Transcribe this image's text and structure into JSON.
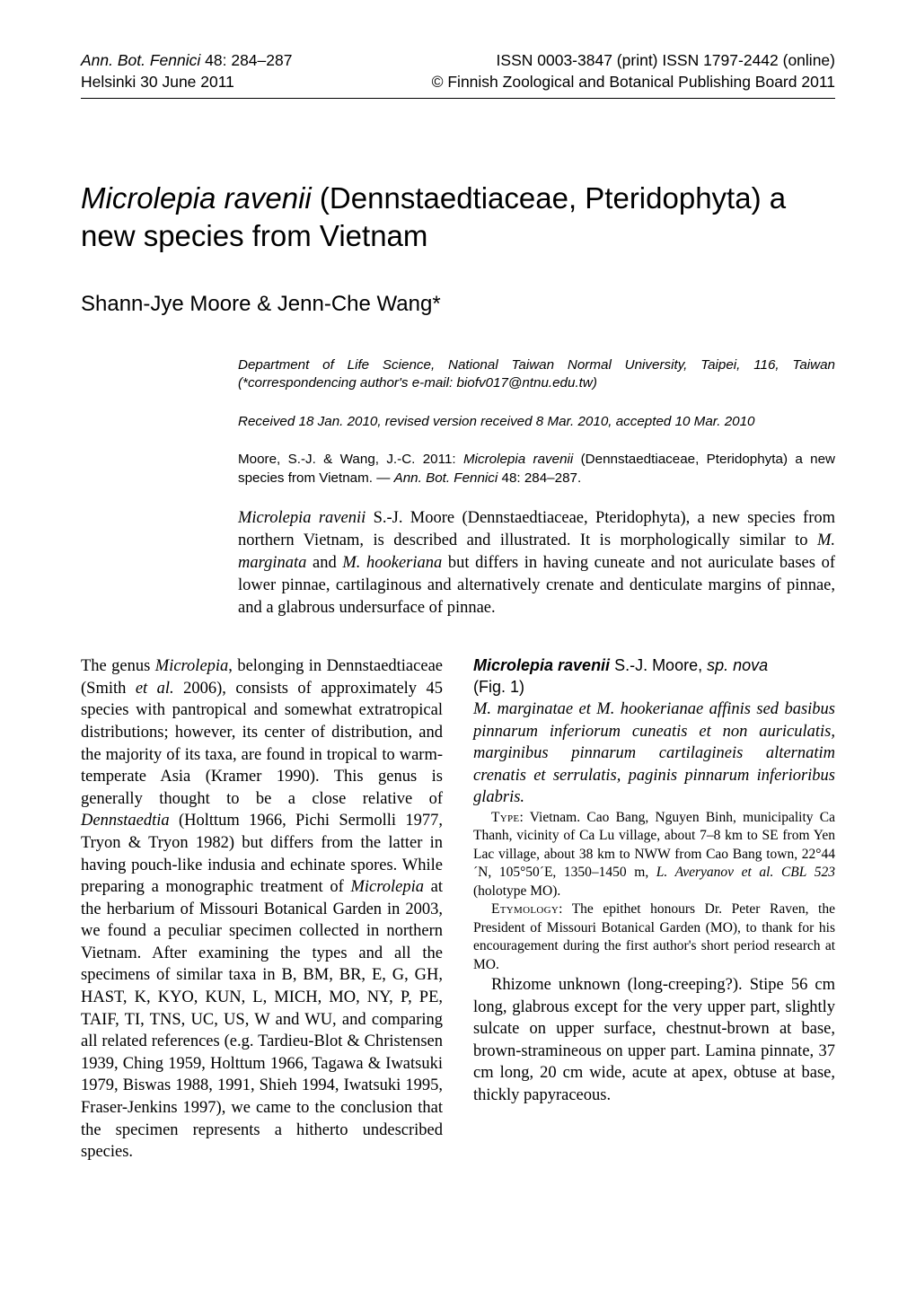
{
  "header": {
    "left_line1": "Ann. Bot. Fennici",
    "left_vol": " 48: 284–287",
    "left_line2": "Helsinki 30 June 2011",
    "right_line1": "ISSN 0003-3847 (print)  ISSN 1797-2442 (online)",
    "right_line2": "© Finnish Zoological and Botanical Publishing Board 2011"
  },
  "title_part1": "Microlepia ravenii",
  "title_part2": " (Dennstaedtiaceae, Pteridophyta) a new species from Vietnam",
  "authors": "Shann-Jye Moore & Jenn-Che Wang*",
  "affiliation": "Department of Life Science, National Taiwan Normal University, Taipei, 116, Taiwan (*correspondencing author's e-mail: biofv017@ntnu.edu.tw)",
  "received": "Received 18 Jan. 2010, revised version received 8 Mar. 2010, accepted 10 Mar. 2010",
  "citation_pre": "Moore, S.-J. & Wang, J.-C. 2011: ",
  "citation_em1": "Microlepia ravenii",
  "citation_mid": " (Dennstaedtiaceae, Pteridophyta) a new species from Vietnam. — ",
  "citation_em2": "Ann. Bot. Fennici",
  "citation_post": " 48: 284–287.",
  "abstract_em1": "Microlepia ravenii",
  "abstract_p1": " S.-J. Moore (Dennstaedtiaceae, Pteridophyta), a new species from northern Vietnam, is described and illustrated. It is morphologically similar to ",
  "abstract_em2": "M. marginata",
  "abstract_p2": " and ",
  "abstract_em3": "M. hookeriana",
  "abstract_p3": " but differs in having cuneate and not auriculate bases of lower pinnae, cartilaginous and alternatively crenate and denticulate margins of pinnae, and a glabrous undersurface of pinnae.",
  "intro_p1a": "The genus ",
  "intro_em1": "Microlepia",
  "intro_p1b": ", belonging in Dennstaedtiaceae (Smith ",
  "intro_em_etal": "et al.",
  "intro_p1c": " 2006), consists of approximately 45 species with pantropical and somewhat extratropical distributions; however, its center of distribution, and the majority of its taxa, are found in tropical to warm-temperate Asia (Kramer 1990). This genus is generally thought to be a close relative of ",
  "intro_em2": "Dennstaedtia",
  "intro_p1d": " (Holttum 1966, Pichi Sermolli 1977, Tryon & Tryon 1982) but differs from the latter in having pouch-like indusia and echinate spores. While preparing a monographic treatment of ",
  "intro_em3": "Microlepia",
  "intro_p1e": " at the herbarium of Missouri Botanical Garden in 2003, we found a peculiar specimen collected in northern Vietnam. After examining the types and all the specimens of similar taxa in B, BM, BR, E, G, GH, HAST, K, KYO, KUN, L, MICH, MO, NY, P, PE, TAIF, TI, TNS, UC, US, W and WU, and comparing all related references (e.g. Tardieu-Blot & Christensen 1939, Ching 1959, Holttum 1966, Tagawa & Iwatsuki 1979, Biswas 1988, 1991, Shieh 1994, Iwatsuki 1995, Fraser-Jenkins 1997), we came to the conclusion that the specimen represents a hitherto undescribed species.",
  "heading_strong": "Microlepia ravenii",
  "heading_rest": " S.-J. Moore, ",
  "heading_em": "sp. nova",
  "figref": "(Fig. 1)",
  "diagnosis": "M. marginatae et M. hookerianae affinis sed basibus pinnarum inferiorum cuneatis et non auriculatis, marginibus pinnarum cartilagineis alternatim crenatis et serrulatis, paginis pinnarum inferioribus glabris.",
  "type_sc": "Type",
  "type_text": ": Vietnam. Cao Bang, Nguyen Binh, municipality Ca Thanh, vicinity of Ca Lu village, about 7–8 km to SE from Yen Lac village, about 38 km to NWW from Cao Bang town, 22°44´N, 105°50´E, 1350–1450 m, ",
  "type_em": "L. Averyanov et al. CBL 523",
  "type_post": " (holotype MO).",
  "etym_sc": "Etymology",
  "etym_text": ": The epithet honours Dr. Peter Raven, the President of Missouri Botanical Garden (MO), to thank for his encouragement during the first author's short period research at MO.",
  "desc_p": "Rhizome unknown (long-creeping?). Stipe 56 cm long, glabrous except for the very upper part, slightly sulcate on upper surface, chestnut-brown at base, brown-stramineous on upper part. Lamina pinnate, 37 cm long, 20 cm wide, acute at apex, obtuse at base, thickly papyraceous."
}
